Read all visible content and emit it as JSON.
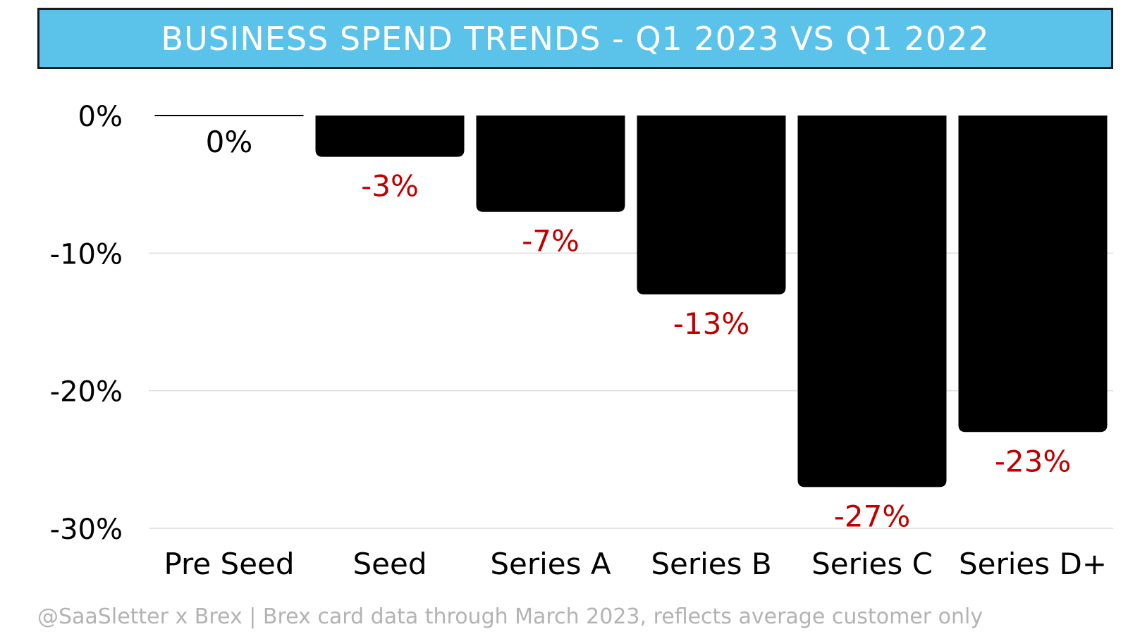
{
  "title": "BUSINESS SPEND TRENDS - Q1 2023 VS Q1 2022",
  "footer": "@SaaSletter x Brex | Brex card data through March 2023, reflects average customer only",
  "colors": {
    "title_background": "#5bc3ea",
    "bar": "#000000",
    "negative_label": "#c00000",
    "zero_label": "#000000",
    "gridline": "#dddddd",
    "footer_text": "#b3b3b3"
  },
  "chart_data": {
    "type": "bar",
    "title": "BUSINESS SPEND TRENDS - Q1 2023 VS Q1 2022",
    "xlabel": "",
    "ylabel": "",
    "categories": [
      "Pre Seed",
      "Seed",
      "Series A",
      "Series B",
      "Series C",
      "Series D+"
    ],
    "values": [
      0,
      -3,
      -7,
      -13,
      -27,
      -23
    ],
    "data_labels": [
      "0%",
      "-3%",
      "-7%",
      "-13%",
      "-27%",
      "-23%"
    ],
    "ylim": [
      -30,
      0
    ],
    "yticks": [
      0,
      -10,
      -20,
      -30
    ],
    "ytick_labels": [
      "0%",
      "-10%",
      "-20%",
      "-30%"
    ],
    "grid": true,
    "legend": "none"
  }
}
